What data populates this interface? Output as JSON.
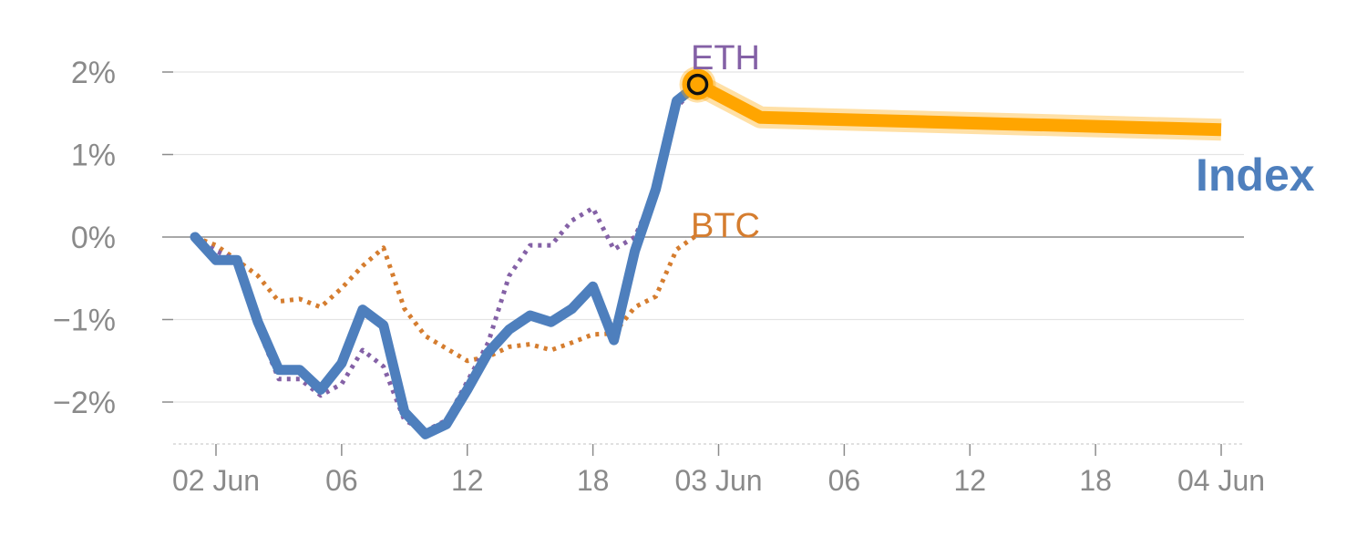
{
  "chart_data": {
    "type": "line",
    "title": "",
    "xlabel": "",
    "ylabel": "",
    "ylim": [
      -2.5,
      2.5
    ],
    "y_ticks": [
      2,
      1,
      0,
      -1,
      -2
    ],
    "y_tick_labels": [
      "2%",
      "1%",
      "0%",
      "−1%",
      "−2%"
    ],
    "x_tick_labels": [
      "02 Jun",
      "06",
      "12",
      "18",
      "03 Jun",
      "06",
      "12",
      "18",
      "04 Jun"
    ],
    "x_tick_hours": [
      0,
      6,
      12,
      18,
      24,
      30,
      36,
      42,
      48
    ],
    "x_range_hours": [
      -2,
      49
    ],
    "grid": true,
    "series": [
      {
        "name": "Index",
        "color": "#4e7fbd",
        "style": "solid",
        "hours": [
          -1,
          0,
          1,
          2,
          3,
          4,
          5,
          6,
          7,
          8,
          9,
          10,
          11,
          12,
          13,
          14,
          15,
          16,
          17,
          18,
          19,
          20,
          21,
          22,
          23
        ],
        "values": [
          0,
          -0.28,
          -0.28,
          -1.03,
          -1.61,
          -1.61,
          -1.85,
          -1.53,
          -0.88,
          -1.07,
          -2.12,
          -2.39,
          -2.27,
          -1.85,
          -1.4,
          -1.12,
          -0.95,
          -1.03,
          -0.87,
          -0.6,
          -1.25,
          -0.17,
          0.58,
          1.65,
          1.85
        ]
      },
      {
        "name": "ETH",
        "color": "#8461a6",
        "style": "dotted",
        "hours": [
          -1,
          0,
          1,
          2,
          3,
          4,
          5,
          6,
          7,
          8,
          9,
          10,
          11,
          12,
          13,
          14,
          15,
          16,
          17,
          18,
          19,
          20,
          21,
          22,
          23
        ],
        "values": [
          0,
          -0.17,
          -0.28,
          -1.1,
          -1.72,
          -1.72,
          -1.92,
          -1.78,
          -1.37,
          -1.57,
          -2.22,
          -2.35,
          -2.22,
          -1.75,
          -1.28,
          -0.47,
          -0.1,
          -0.1,
          0.2,
          0.35,
          -0.15,
          0.0,
          0.57,
          1.57,
          1.85
        ]
      },
      {
        "name": "BTC",
        "color": "#d57d2f",
        "style": "dotted",
        "hours": [
          -1,
          0,
          1,
          2,
          3,
          4,
          5,
          6,
          7,
          8,
          9,
          10,
          11,
          12,
          13,
          14,
          15,
          16,
          17,
          18,
          19,
          20,
          21,
          22,
          23
        ],
        "values": [
          0,
          -0.1,
          -0.28,
          -0.47,
          -0.78,
          -0.75,
          -0.85,
          -0.62,
          -0.35,
          -0.13,
          -0.87,
          -1.2,
          -1.35,
          -1.5,
          -1.45,
          -1.33,
          -1.3,
          -1.37,
          -1.28,
          -1.18,
          -1.17,
          -0.85,
          -0.72,
          -0.15,
          0.03
        ]
      },
      {
        "name": "Index",
        "color": "#ffa500",
        "style": "projection",
        "hours": [
          23,
          26,
          48
        ],
        "values": [
          1.85,
          1.45,
          1.3
        ]
      }
    ],
    "marker": {
      "hour": 23,
      "value": 1.85
    }
  }
}
